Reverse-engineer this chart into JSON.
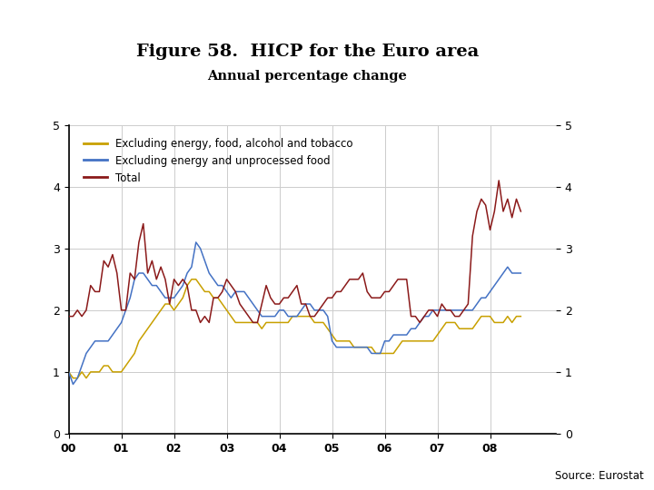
{
  "title": "Figure 58.  HICP for the Euro area",
  "subtitle": "Annual percentage change",
  "source": "Source: Eurostat",
  "legend": [
    "Excluding energy, food, alcohol and tobacco",
    "Excluding energy and unprocessed food",
    "Total"
  ],
  "colors": {
    "excl_energy_food": "#C8A000",
    "excl_energy_unproc": "#4472C4",
    "total": "#8B1A1A"
  },
  "ylim": [
    0,
    5
  ],
  "yticks": [
    0,
    1,
    2,
    3,
    4,
    5
  ],
  "xlabel_ticks": [
    "00",
    "01",
    "02",
    "03",
    "04",
    "05",
    "06",
    "07",
    "08"
  ],
  "background_color": "#ffffff",
  "grid_color": "#cccccc",
  "footer_color": "#1F3B6E",
  "excl_energy_food": [
    1.0,
    0.9,
    0.9,
    1.0,
    0.9,
    1.0,
    1.0,
    1.0,
    1.1,
    1.1,
    1.0,
    1.0,
    1.0,
    1.1,
    1.2,
    1.3,
    1.5,
    1.6,
    1.7,
    1.8,
    1.9,
    2.0,
    2.1,
    2.1,
    2.0,
    2.1,
    2.2,
    2.4,
    2.5,
    2.5,
    2.4,
    2.3,
    2.3,
    2.2,
    2.2,
    2.1,
    2.0,
    1.9,
    1.8,
    1.8,
    1.8,
    1.8,
    1.8,
    1.8,
    1.7,
    1.8,
    1.8,
    1.8,
    1.8,
    1.8,
    1.8,
    1.9,
    1.9,
    1.9,
    1.9,
    1.9,
    1.8,
    1.8,
    1.8,
    1.7,
    1.6,
    1.5,
    1.5,
    1.5,
    1.5,
    1.4,
    1.4,
    1.4,
    1.4,
    1.4,
    1.3,
    1.3,
    1.3,
    1.3,
    1.3,
    1.4,
    1.5,
    1.5,
    1.5,
    1.5,
    1.5,
    1.5,
    1.5,
    1.5,
    1.6,
    1.7,
    1.8,
    1.8,
    1.8,
    1.7,
    1.7,
    1.7,
    1.7,
    1.8,
    1.9,
    1.9,
    1.9,
    1.8,
    1.8,
    1.8,
    1.9,
    1.8,
    1.9,
    1.9
  ],
  "excl_energy_unproc": [
    1.0,
    0.8,
    0.9,
    1.1,
    1.3,
    1.4,
    1.5,
    1.5,
    1.5,
    1.5,
    1.6,
    1.7,
    1.8,
    2.0,
    2.2,
    2.5,
    2.6,
    2.6,
    2.5,
    2.4,
    2.4,
    2.3,
    2.2,
    2.2,
    2.2,
    2.3,
    2.4,
    2.6,
    2.7,
    3.1,
    3.0,
    2.8,
    2.6,
    2.5,
    2.4,
    2.4,
    2.3,
    2.2,
    2.3,
    2.3,
    2.3,
    2.2,
    2.1,
    2.0,
    1.9,
    1.9,
    1.9,
    1.9,
    2.0,
    2.0,
    1.9,
    1.9,
    1.9,
    2.0,
    2.1,
    2.1,
    2.0,
    2.0,
    2.0,
    1.9,
    1.5,
    1.4,
    1.4,
    1.4,
    1.4,
    1.4,
    1.4,
    1.4,
    1.4,
    1.3,
    1.3,
    1.3,
    1.5,
    1.5,
    1.6,
    1.6,
    1.6,
    1.6,
    1.7,
    1.7,
    1.8,
    1.9,
    1.9,
    2.0,
    2.0,
    2.0,
    2.0,
    2.0,
    2.0,
    2.0,
    2.0,
    2.0,
    2.0,
    2.1,
    2.2,
    2.2,
    2.3,
    2.4,
    2.5,
    2.6,
    2.7,
    2.6,
    2.6,
    2.6
  ],
  "total": [
    1.9,
    1.9,
    2.0,
    1.9,
    2.0,
    2.4,
    2.3,
    2.3,
    2.8,
    2.7,
    2.9,
    2.6,
    2.0,
    2.0,
    2.6,
    2.5,
    3.1,
    3.4,
    2.6,
    2.8,
    2.5,
    2.7,
    2.5,
    2.1,
    2.5,
    2.4,
    2.5,
    2.4,
    2.0,
    2.0,
    1.8,
    1.9,
    1.8,
    2.2,
    2.2,
    2.3,
    2.5,
    2.4,
    2.3,
    2.1,
    2.0,
    1.9,
    1.8,
    1.8,
    2.1,
    2.4,
    2.2,
    2.1,
    2.1,
    2.2,
    2.2,
    2.3,
    2.4,
    2.1,
    2.1,
    1.9,
    1.9,
    2.0,
    2.1,
    2.2,
    2.2,
    2.3,
    2.3,
    2.4,
    2.5,
    2.5,
    2.5,
    2.6,
    2.3,
    2.2,
    2.2,
    2.2,
    2.3,
    2.3,
    2.4,
    2.5,
    2.5,
    2.5,
    1.9,
    1.9,
    1.8,
    1.9,
    2.0,
    2.0,
    1.9,
    2.1,
    2.0,
    2.0,
    1.9,
    1.9,
    2.0,
    2.1,
    3.2,
    3.6,
    3.8,
    3.7,
    3.3,
    3.6,
    4.1,
    3.6,
    3.8,
    3.5,
    3.8,
    3.6
  ]
}
